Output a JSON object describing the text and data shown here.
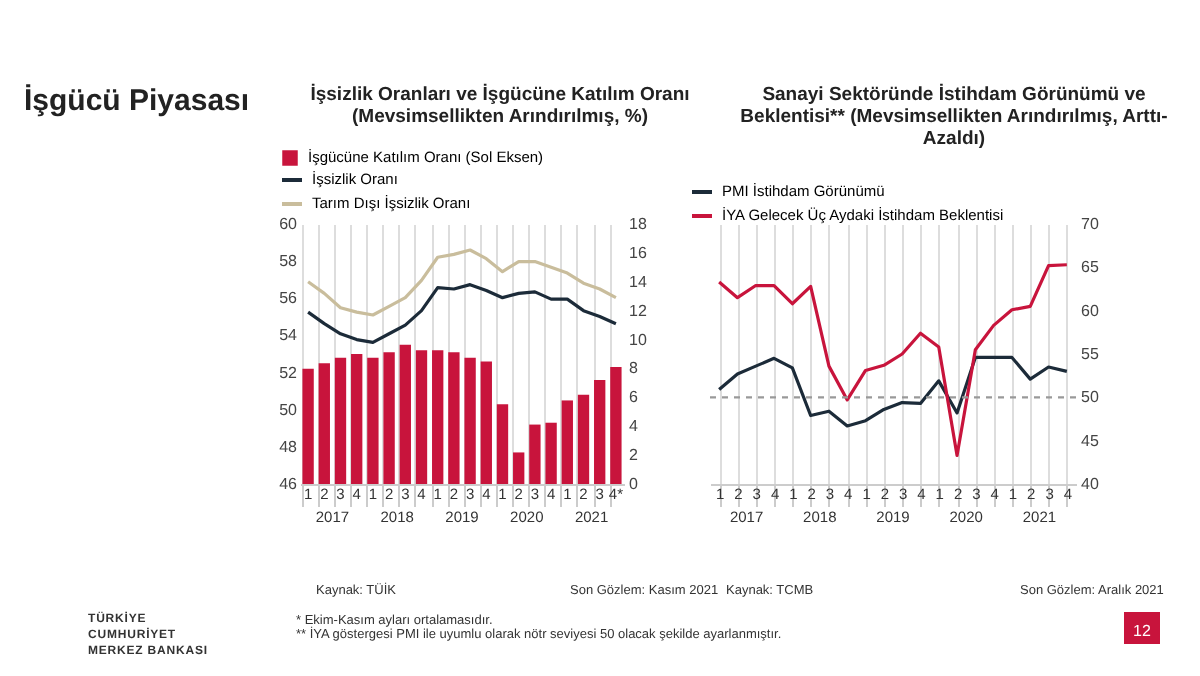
{
  "chart_data": [
    {
      "type": "bar",
      "title": "İşsizlik Oranları ve İşgücüne Katılım Oranı (Mevsimsellikten Arındırılmış, %)",
      "categories": [
        "1",
        "2",
        "3",
        "4",
        "1",
        "2",
        "3",
        "4",
        "1",
        "2",
        "3",
        "4",
        "1",
        "2",
        "3",
        "4",
        "1",
        "2",
        "3",
        "4*"
      ],
      "series": [
        {
          "name": "İşgücüne Katılım Oranı (Sol Eksen)",
          "color": "#c8143c",
          "values": [
            52.2,
            52.5,
            52.8,
            53.0,
            52.8,
            53.1,
            53.5,
            53.2,
            53.2,
            53.1,
            52.8,
            52.6,
            50.3,
            47.7,
            49.2,
            49.3,
            50.5,
            50.8,
            51.6,
            52.3
          ]
        },
        {
          "name": "İşsizlik Oranı",
          "type": "line",
          "axis": "y2",
          "color": "#1c2b39",
          "values": [
            11.9,
            11.1,
            10.4,
            10.0,
            9.8,
            10.4,
            11.0,
            12.0,
            13.6,
            13.5,
            13.8,
            13.4,
            12.9,
            13.2,
            13.3,
            12.8,
            12.8,
            12.0,
            11.6,
            11.1
          ]
        },
        {
          "name": "Tarım Dışı İşsizlik Oranı",
          "type": "line",
          "axis": "y2",
          "color": "#c9bd9c",
          "values": [
            14.0,
            13.2,
            12.2,
            11.9,
            11.7,
            12.3,
            12.9,
            14.1,
            15.7,
            15.9,
            16.2,
            15.6,
            14.7,
            15.4,
            15.4,
            15.0,
            14.6,
            13.9,
            13.5,
            12.9
          ]
        }
      ],
      "ylim": [
        46,
        60
      ],
      "yticks": [
        46,
        48,
        50,
        52,
        54,
        56,
        58,
        60
      ],
      "y2lim": [
        0,
        18
      ],
      "y2ticks": [
        0,
        2,
        4,
        6,
        8,
        10,
        12,
        14,
        16,
        18
      ],
      "grid": "x",
      "legend": "top",
      "annotations": [
        "2017",
        "2018",
        "2019",
        "2020",
        "2021",
        "Kaynak: TÜİK",
        "Son Gözlem: Kasım 2021",
        "İşgücü Piyasası",
        "* Ekim-Kasım ayları ortalamasıdır.",
        "** İYA göstergesi PMI ile uyumlu olarak nötr seviyesi 50 olacak şekilde ayarlanmıştır.",
        "TÜRKİYE CUMHURİYET MERKEZ BANKASI"
      ]
    },
    {
      "type": "line",
      "title": "Sanayi Sektöründe İstihdam Görünümü ve Beklentisi** (Mevsimsellikten Arındırılmış, Arttı-Azaldı)",
      "categories": [
        "1",
        "2",
        "3",
        "4",
        "1",
        "2",
        "3",
        "4",
        "1",
        "2",
        "3",
        "4",
        "1",
        "2",
        "3",
        "4",
        "1",
        "2",
        "3",
        "4"
      ],
      "series": [
        {
          "name": "PMI İstihdam Görünümü",
          "axis": "y2",
          "color": "#1c2b39",
          "values": [
            50.9,
            52.7,
            53.6,
            54.5,
            53.4,
            47.9,
            48.4,
            46.7,
            47.3,
            48.6,
            49.4,
            49.3,
            51.9,
            48.2,
            54.6,
            54.6,
            54.6,
            52.1,
            53.5,
            53.0
          ]
        },
        {
          "name": "İYA Gelecek Üç Aydaki İstihdam Beklentisi",
          "axis": "y2",
          "color": "#c8143c",
          "values": [
            63.3,
            61.5,
            62.9,
            62.9,
            60.8,
            62.8,
            53.6,
            49.7,
            53.1,
            53.7,
            55.0,
            57.4,
            55.8,
            43.3,
            55.5,
            58.3,
            60.1,
            60.5,
            65.2,
            65.3
          ]
        }
      ],
      "y2lim": [
        40,
        70
      ],
      "y2ticks": [
        40,
        45,
        50,
        55,
        60,
        65,
        70
      ],
      "ref_lines": [
        {
          "axis": "y2",
          "value": 50,
          "color": "#999999",
          "line_style": "dashed"
        }
      ],
      "grid": "x",
      "legend": "top",
      "annotations": [
        "2017",
        "2018",
        "2019",
        "2020",
        "2021",
        "Kaynak: TCMB",
        "Son Gözlem: Aralık 2021",
        "12"
      ]
    }
  ]
}
